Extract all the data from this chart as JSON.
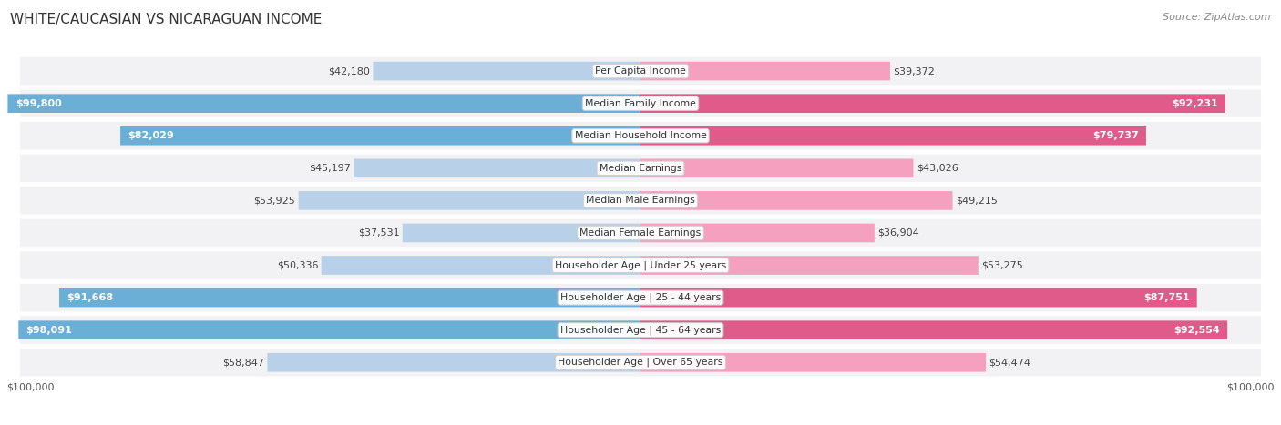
{
  "title": "WHITE/CAUCASIAN VS NICARAGUAN INCOME",
  "source": "Source: ZipAtlas.com",
  "categories": [
    "Per Capita Income",
    "Median Family Income",
    "Median Household Income",
    "Median Earnings",
    "Median Male Earnings",
    "Median Female Earnings",
    "Householder Age | Under 25 years",
    "Householder Age | 25 - 44 years",
    "Householder Age | 45 - 64 years",
    "Householder Age | Over 65 years"
  ],
  "white_values": [
    42180,
    99800,
    82029,
    45197,
    53925,
    37531,
    50336,
    91668,
    98091,
    58847
  ],
  "nicaraguan_values": [
    39372,
    92231,
    79737,
    43026,
    49215,
    36904,
    53275,
    87751,
    92554,
    54474
  ],
  "max_value": 100000,
  "white_color_light": "#b8d0e8",
  "white_color_dark": "#6baed6",
  "nicaraguan_color_light": "#f4a0be",
  "nicaraguan_color_dark": "#e05a8a",
  "white_label": "White/Caucasian",
  "nicaraguan_label": "Nicaraguan",
  "bar_height": 0.58,
  "row_bg_color": "#f2f2f4",
  "row_border_color": "#ffffff",
  "xlabel_left": "$100,000",
  "xlabel_right": "$100,000",
  "title_fontsize": 11,
  "value_fontsize": 8,
  "cat_fontsize": 7.8,
  "threshold_inside": 72000
}
